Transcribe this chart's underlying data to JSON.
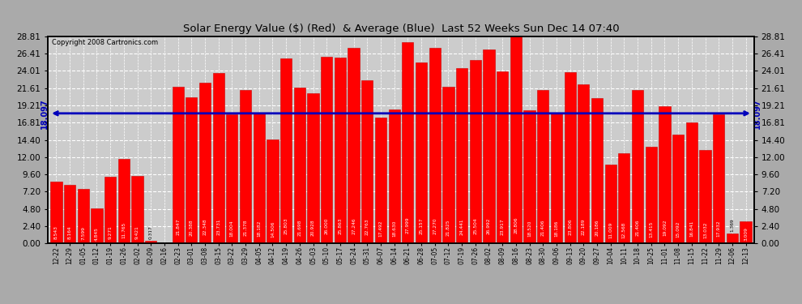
{
  "title": "Solar Energy Value ($) (Red)  & Average (Blue)  Last 52 Weeks Sun Dec 14 07:40",
  "copyright": "Copyright 2008 Cartronics.com",
  "average_line": 18.097,
  "average_label": "18.097",
  "bar_color": "#FF0000",
  "bar_edge_color": "#CC0000",
  "avg_line_color": "#0000BB",
  "fig_bg_color": "#AAAAAA",
  "plot_bg_color": "#CCCCCC",
  "yticks": [
    0.0,
    2.4,
    4.8,
    7.2,
    9.6,
    12.0,
    14.4,
    16.81,
    19.21,
    21.61,
    24.01,
    26.41,
    28.81
  ],
  "categories": [
    "12-22",
    "12-29",
    "01-05",
    "01-12",
    "01-19",
    "01-26",
    "02-02",
    "02-09",
    "02-16",
    "02-23",
    "03-01",
    "03-08",
    "03-15",
    "03-22",
    "03-29",
    "04-05",
    "04-12",
    "04-19",
    "04-26",
    "05-03",
    "05-10",
    "05-17",
    "05-24",
    "05-31",
    "06-07",
    "06-14",
    "06-21",
    "06-28",
    "07-05",
    "07-12",
    "07-19",
    "07-26",
    "08-02",
    "08-09",
    "08-16",
    "08-23",
    "08-30",
    "09-06",
    "09-13",
    "09-20",
    "09-27",
    "10-04",
    "10-11",
    "10-18",
    "10-25",
    "11-01",
    "11-08",
    "11-15",
    "11-22",
    "11-29",
    "12-06",
    "12-13"
  ],
  "values": [
    8.543,
    8.164,
    7.599,
    4.845,
    9.271,
    11.765,
    9.421,
    0.317,
    0.0,
    21.847,
    20.388,
    22.348,
    23.731,
    18.004,
    21.378,
    18.182,
    14.506,
    25.803,
    21.698,
    20.928,
    26.0,
    25.863,
    27.246,
    22.763,
    17.492,
    18.63,
    27.999,
    25.157,
    27.27,
    21.825,
    24.441,
    25.504,
    26.992,
    23.917,
    28.806,
    18.52,
    21.406,
    18.186,
    23.806,
    22.189,
    20.186,
    11.009,
    12.568,
    21.406,
    13.415,
    19.092,
    15.092,
    16.841,
    13.032,
    17.932,
    1.369,
    3.009
  ],
  "ylim": [
    0.0,
    28.81
  ],
  "figsize": [
    9.9,
    3.75
  ],
  "dpi": 100
}
